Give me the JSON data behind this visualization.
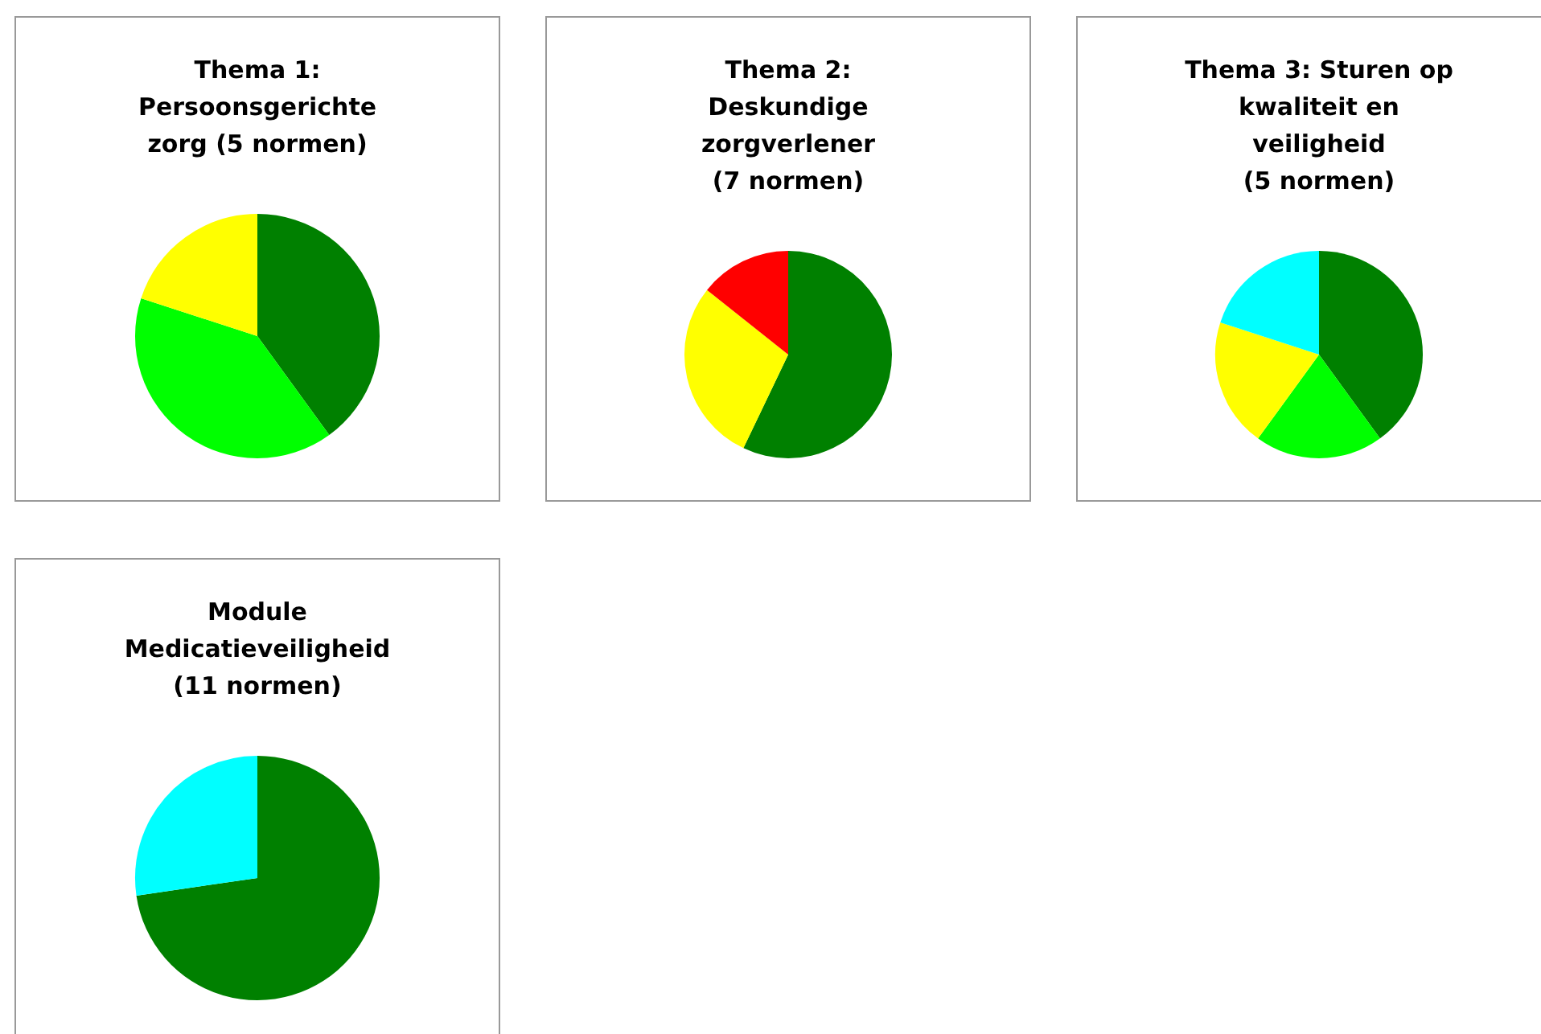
{
  "chart_data": [
    {
      "type": "pie",
      "title": "Thema 1:\nPersoonsgerichte\nzorg (5 normen)",
      "categories": [
        null,
        null,
        null
      ],
      "values": [
        40,
        40,
        20
      ],
      "colors": [
        "#008000",
        "#00ff00",
        "#ffff00"
      ],
      "legend": false
    },
    {
      "type": "pie",
      "title": "Thema 2:\nDeskundige\nzorgverlener\n(7 normen)",
      "categories": [
        null,
        null,
        null
      ],
      "values": [
        57.1,
        28.6,
        14.3
      ],
      "colors": [
        "#008000",
        "#ffff00",
        "#ff0000"
      ],
      "legend": false
    },
    {
      "type": "pie",
      "title": "Thema 3: Sturen op\nkwaliteit en\nveiligheid\n(5 normen)",
      "categories": [
        null,
        null,
        null,
        null
      ],
      "values": [
        40,
        20,
        20,
        20
      ],
      "colors": [
        "#008000",
        "#00ff00",
        "#ffff00",
        "#00ffff"
      ],
      "legend": false
    },
    {
      "type": "pie",
      "title": "Module\nMedicatieveiligheid\n(11 normen)",
      "categories": [
        null,
        null
      ],
      "values": [
        72.7,
        27.3
      ],
      "colors": [
        "#008000",
        "#00ffff"
      ],
      "legend": false
    }
  ]
}
